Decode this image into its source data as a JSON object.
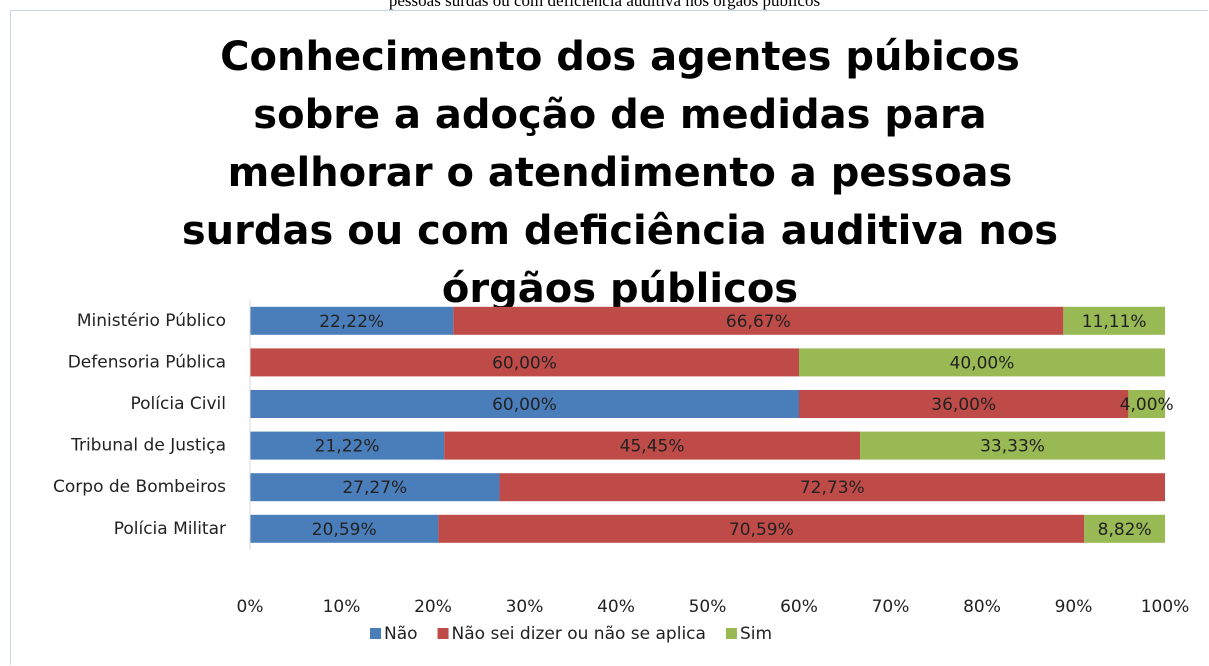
{
  "chart_data": {
    "type": "stacked_bar_horizontal",
    "caption": "pessoas surdas ou com deficiência auditiva nos órgãos públicos",
    "title": "Conhecimento dos agentes púbicos sobre a adoção de medidas para melhorar o atendimento a pessoas surdas ou com deficiência auditiva nos órgãos públicos",
    "categories": [
      "Ministério Público",
      "Defensoria Pública",
      "Polícia Civil",
      "Tribunal de Justiça",
      "Corpo de Bombeiros",
      "Polícia Militar"
    ],
    "series": [
      {
        "name": "Não",
        "color": "#4a7ebb",
        "values": [
          22.22,
          null,
          60,
          21.22,
          27.27,
          20.59
        ],
        "value_labels": [
          "22,22%",
          null,
          "60,00%",
          "21,22%",
          "27,27%",
          "20,59%"
        ]
      },
      {
        "name": "Não sei dizer ou não se aplica",
        "color": "#be4b48",
        "values": [
          66.67,
          60,
          36,
          45.45,
          72.73,
          70.59
        ],
        "value_labels": [
          "66,67%",
          "60,00%",
          "36,00%",
          "45,45%",
          "72,73%",
          "70,59%"
        ]
      },
      {
        "name": "Sim",
        "color": "#98b954",
        "values": [
          11.11,
          40,
          4,
          33.33,
          null,
          8.82
        ],
        "value_labels": [
          "11,11%",
          "40,00%",
          "4,00%",
          "33,33%",
          null,
          "8,82%"
        ]
      }
    ],
    "xlim": [
      0,
      100
    ],
    "xticks": [
      {
        "value": 0,
        "label": "0%"
      },
      {
        "value": 10,
        "label": "10%"
      },
      {
        "value": 20,
        "label": "20%"
      },
      {
        "value": 30,
        "label": "30%"
      },
      {
        "value": 40,
        "label": "40%"
      },
      {
        "value": 50,
        "label": "50%"
      },
      {
        "value": 60,
        "label": "60%"
      },
      {
        "value": 70,
        "label": "70%"
      },
      {
        "value": 80,
        "label": "80%"
      },
      {
        "value": 90,
        "label": "90%"
      },
      {
        "value": 100,
        "label": "100%"
      }
    ],
    "legend": "bottom"
  }
}
